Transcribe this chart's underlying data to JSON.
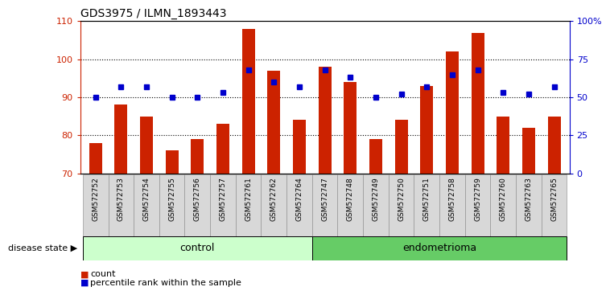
{
  "title": "GDS3975 / ILMN_1893443",
  "samples": [
    "GSM572752",
    "GSM572753",
    "GSM572754",
    "GSM572755",
    "GSM572756",
    "GSM572757",
    "GSM572761",
    "GSM572762",
    "GSM572764",
    "GSM572747",
    "GSM572748",
    "GSM572749",
    "GSM572750",
    "GSM572751",
    "GSM572758",
    "GSM572759",
    "GSM572760",
    "GSM572763",
    "GSM572765"
  ],
  "counts": [
    78,
    88,
    85,
    76,
    79,
    83,
    108,
    97,
    84,
    98,
    94,
    79,
    84,
    93,
    102,
    107,
    85,
    82,
    85
  ],
  "percentile_ranks": [
    50,
    57,
    57,
    50,
    50,
    53,
    68,
    60,
    57,
    68,
    63,
    50,
    52,
    57,
    65,
    68,
    53,
    52,
    57
  ],
  "groups": [
    "control",
    "control",
    "control",
    "control",
    "control",
    "control",
    "control",
    "control",
    "control",
    "endometrioma",
    "endometrioma",
    "endometrioma",
    "endometrioma",
    "endometrioma",
    "endometrioma",
    "endometrioma",
    "endometrioma",
    "endometrioma",
    "endometrioma"
  ],
  "control_color": "#ccffcc",
  "endometrioma_color": "#66cc66",
  "bar_color": "#cc2200",
  "dot_color": "#0000cc",
  "ylim_left": [
    70,
    110
  ],
  "ylim_right": [
    0,
    100
  ],
  "yticks_left": [
    70,
    80,
    90,
    100,
    110
  ],
  "yticks_right": [
    0,
    25,
    50,
    75,
    100
  ],
  "ytick_labels_right": [
    "0",
    "25",
    "50",
    "75",
    "100%"
  ],
  "title_fontsize": 10,
  "bar_width": 0.5,
  "group_label_control": "control",
  "group_label_endometrioma": "endometrioma",
  "disease_state_label": "disease state",
  "legend_count": "count",
  "legend_percentile": "percentile rank within the sample",
  "background_color": "#ffffff"
}
